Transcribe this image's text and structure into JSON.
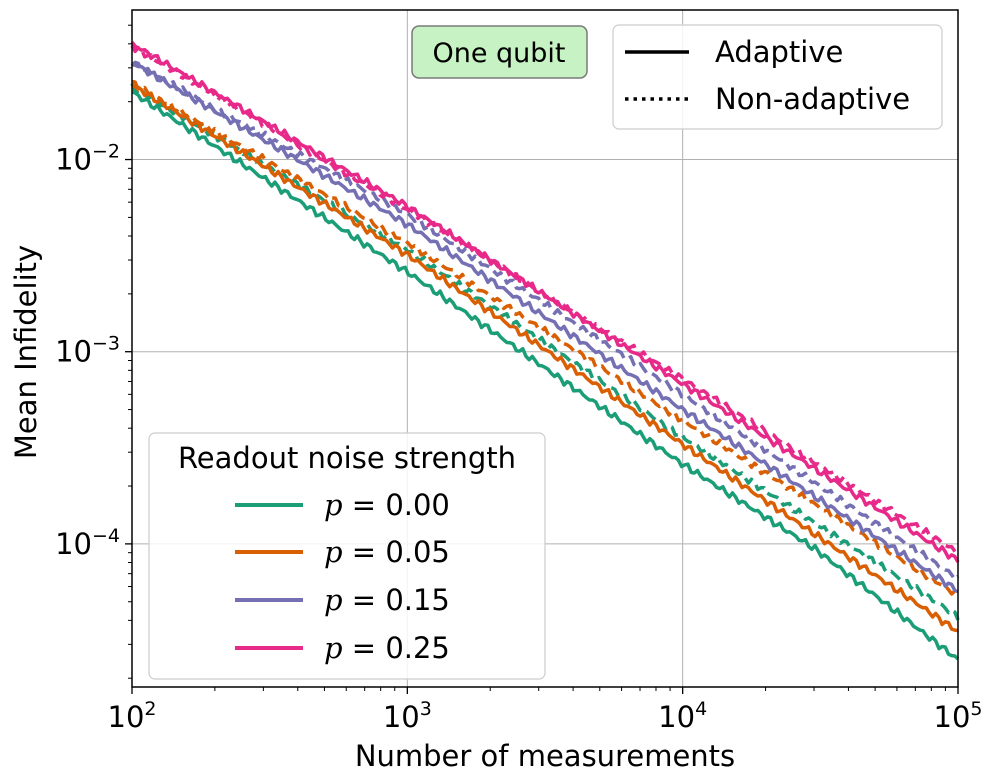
{
  "chart_data": {
    "type": "line",
    "title": "",
    "xlabel": "Number of measurements",
    "ylabel": "Mean Infidelity",
    "xscale": "log",
    "yscale": "log",
    "xlim": [
      100,
      100000
    ],
    "ylim": [
      1.8e-05,
      0.06
    ],
    "grid": true,
    "x_ticks": [
      {
        "value": 100,
        "base": "10",
        "exp": "2"
      },
      {
        "value": 1000,
        "base": "10",
        "exp": "3"
      },
      {
        "value": 10000,
        "base": "10",
        "exp": "4"
      },
      {
        "value": 100000,
        "base": "10",
        "exp": "5"
      }
    ],
    "y_ticks": [
      {
        "value": 0.0001,
        "base": "10",
        "exp": "−4"
      },
      {
        "value": 0.001,
        "base": "10",
        "exp": "−3"
      },
      {
        "value": 0.01,
        "base": "10",
        "exp": "−2"
      }
    ],
    "annotation": {
      "text": "One qubit",
      "background": "#c6f2c4",
      "border": "#7a7a7a",
      "position": "top-center"
    },
    "style_legend": {
      "position": "top-right",
      "entries": [
        {
          "label": "Adaptive",
          "linestyle": "solid"
        },
        {
          "label": "Non-adaptive",
          "linestyle": "dotted"
        }
      ]
    },
    "color_legend": {
      "title": "Readout noise strength",
      "position": "bottom-left",
      "entries": [
        {
          "symbol": "p",
          "eq": " = 0.00",
          "color": "#1b9e77"
        },
        {
          "symbol": "p",
          "eq": " = 0.05",
          "color": "#d95f02"
        },
        {
          "symbol": "p",
          "eq": " = 0.15",
          "color": "#7570b3"
        },
        {
          "symbol": "p",
          "eq": " = 0.25",
          "color": "#e7298a"
        }
      ]
    },
    "series": [
      {
        "name": "p = 0.00 adaptive",
        "color": "#1b9e77",
        "dash": "solid",
        "x": [
          100,
          1000,
          10000,
          30000,
          100000
        ],
        "y": [
          0.0225,
          0.0026,
          0.00026,
          9.5e-05,
          2.5e-05
        ]
      },
      {
        "name": "p = 0.00 non-adaptive",
        "color": "#1b9e77",
        "dash": "dashed",
        "x": [
          100,
          1000,
          10000,
          100000
        ],
        "y": [
          0.024,
          0.0034,
          0.00036,
          4.2e-05
        ]
      },
      {
        "name": "p = 0.05 adaptive",
        "color": "#d95f02",
        "dash": "solid",
        "x": [
          100,
          1000,
          10000,
          100000
        ],
        "y": [
          0.0245,
          0.0032,
          0.00033,
          3.5e-05
        ]
      },
      {
        "name": "p = 0.05 non-adaptive",
        "color": "#d95f02",
        "dash": "dashed",
        "x": [
          100,
          1000,
          10000,
          100000
        ],
        "y": [
          0.025,
          0.0037,
          0.00044,
          5.4e-05
        ]
      },
      {
        "name": "p = 0.15 adaptive",
        "color": "#7570b3",
        "dash": "solid",
        "x": [
          100,
          1000,
          10000,
          100000
        ],
        "y": [
          0.032,
          0.0046,
          0.0005,
          5.7e-05
        ]
      },
      {
        "name": "p = 0.15 non-adaptive",
        "color": "#7570b3",
        "dash": "dashed",
        "x": [
          100,
          1000,
          10000,
          100000
        ],
        "y": [
          0.032,
          0.0052,
          0.0006,
          6.6e-05
        ]
      },
      {
        "name": "p = 0.25 adaptive",
        "color": "#e7298a",
        "dash": "solid",
        "x": [
          100,
          1000,
          10000,
          100000
        ],
        "y": [
          0.04,
          0.0057,
          0.00068,
          8.2e-05
        ]
      },
      {
        "name": "p = 0.25 non-adaptive",
        "color": "#e7298a",
        "dash": "dashed",
        "x": [
          100,
          1000,
          10000,
          100000
        ],
        "y": [
          0.039,
          0.0055,
          0.00072,
          9e-05
        ]
      }
    ]
  }
}
